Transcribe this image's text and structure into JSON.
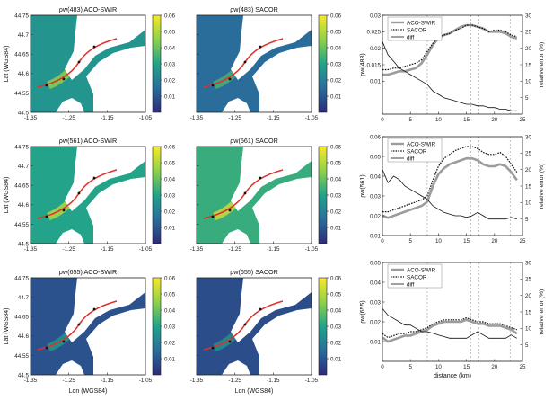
{
  "colors": {
    "land": "#ffffff",
    "water_low": "#2c2a7a",
    "water_mid": "#1f8f8c",
    "water_high": "#f5e52a",
    "track": "#e0312b",
    "aco": "#9c9c9c",
    "sacor": "#111111",
    "diff": "#111111",
    "guide": "#a8a8a8"
  },
  "maps": {
    "x_ticks": [
      "-1.35",
      "-1.25",
      "-1.15",
      "-1.05"
    ],
    "y_ticks": [
      "44.75",
      "44.7",
      "44.65",
      "44.6",
      "44.55",
      "44.5"
    ],
    "y_label": "Lat (WGS84)",
    "x_label": "Lon (WGS84)",
    "colorbar_ticks": [
      "0.06",
      "0.05",
      "0.04",
      "0.03",
      "0.02",
      "0.01"
    ],
    "rows": [
      {
        "left_title": "ρw(483) ACO-SWIR",
        "right_title": "ρw(483) SACOR",
        "left_level": 0.48,
        "right_level": 0.3
      },
      {
        "left_title": "ρw(561) ACO-SWIR",
        "right_title": "ρw(561) SACOR",
        "left_level": 0.55,
        "right_level": 0.6
      },
      {
        "left_title": "ρw(655) ACO-SWIR",
        "right_title": "ρw(655) SACOR",
        "left_level": 0.18,
        "right_level": 0.16
      }
    ]
  },
  "chart_data": [
    {
      "type": "line",
      "ylabel": "ρw(483)",
      "y2label": "relative error (%)",
      "xlabel": "",
      "x_ticks": [
        "0",
        "5",
        "10",
        "15",
        "20",
        "25"
      ],
      "xlim": [
        0,
        25
      ],
      "ylim": [
        0.0,
        0.03
      ],
      "y_ticks": [
        "0.03",
        "0.025",
        "0.02",
        "0.015",
        "0.01"
      ],
      "y2lim": [
        0,
        30
      ],
      "y2_ticks": [
        "30",
        "25",
        "20",
        "15",
        "10",
        "5"
      ],
      "vlines": [
        8,
        15.8,
        17.2,
        22.8
      ],
      "legend": [
        "ACO-SWIR",
        "SACOR",
        "diff"
      ],
      "x": [
        0,
        1,
        2,
        3,
        4,
        5,
        6,
        7,
        8,
        9,
        10,
        11,
        12,
        13,
        14,
        15,
        16,
        17,
        18,
        19,
        20,
        21,
        22,
        23,
        24
      ],
      "series": [
        {
          "name": "ACO-SWIR",
          "axis": "left",
          "values": [
            0.012,
            0.012,
            0.0125,
            0.013,
            0.013,
            0.0135,
            0.014,
            0.0155,
            0.018,
            0.021,
            0.023,
            0.024,
            0.0245,
            0.0255,
            0.0265,
            0.027,
            0.027,
            0.0265,
            0.026,
            0.025,
            0.025,
            0.025,
            0.0245,
            0.0235,
            0.023
          ]
        },
        {
          "name": "SACOR",
          "axis": "left",
          "values": [
            0.0135,
            0.0135,
            0.014,
            0.014,
            0.0145,
            0.015,
            0.0155,
            0.0165,
            0.019,
            0.0215,
            0.0235,
            0.024,
            0.0245,
            0.0255,
            0.026,
            0.027,
            0.027,
            0.0265,
            0.026,
            0.025,
            0.0255,
            0.0255,
            0.025,
            0.024,
            0.0235
          ]
        },
        {
          "name": "diff",
          "axis": "right",
          "values": [
            22,
            18,
            16,
            14,
            13,
            12,
            11,
            10,
            9,
            7,
            6,
            5,
            4.5,
            4,
            3.5,
            3,
            3,
            2.5,
            2.5,
            2,
            2,
            1.5,
            1.5,
            1,
            1
          ]
        }
      ]
    },
    {
      "type": "line",
      "ylabel": "ρw(561)",
      "y2label": "relative error (%)",
      "xlabel": "",
      "x_ticks": [
        "0",
        "5",
        "10",
        "15",
        "20",
        "25"
      ],
      "xlim": [
        0,
        25
      ],
      "ylim": [
        0.01,
        0.06
      ],
      "y_ticks": [
        "0.06",
        "0.05",
        "0.04",
        "0.03",
        "0.02",
        "0.01"
      ],
      "y2lim": [
        0,
        30
      ],
      "y2_ticks": [
        "30",
        "25",
        "20",
        "15",
        "10",
        "5"
      ],
      "vlines": [
        8,
        15.8,
        17.2,
        22.8
      ],
      "legend": [
        "ACO-SWIR",
        "SACOR",
        "diff"
      ],
      "x": [
        0,
        1,
        2,
        3,
        4,
        5,
        6,
        7,
        8,
        9,
        10,
        11,
        12,
        13,
        14,
        15,
        16,
        17,
        18,
        19,
        20,
        21,
        22,
        23,
        24
      ],
      "series": [
        {
          "name": "ACO-SWIR",
          "axis": "left",
          "values": [
            0.02,
            0.019,
            0.02,
            0.021,
            0.022,
            0.023,
            0.024,
            0.025,
            0.027,
            0.035,
            0.041,
            0.044,
            0.046,
            0.047,
            0.048,
            0.049,
            0.049,
            0.048,
            0.046,
            0.045,
            0.045,
            0.046,
            0.045,
            0.042,
            0.038
          ]
        },
        {
          "name": "SACOR",
          "axis": "left",
          "values": [
            0.022,
            0.022,
            0.023,
            0.024,
            0.025,
            0.026,
            0.027,
            0.028,
            0.03,
            0.038,
            0.045,
            0.049,
            0.051,
            0.053,
            0.054,
            0.055,
            0.055,
            0.054,
            0.052,
            0.051,
            0.051,
            0.052,
            0.05,
            0.046,
            0.042
          ]
        },
        {
          "name": "diff",
          "axis": "right",
          "values": [
            20,
            16,
            18,
            17,
            15,
            14,
            13,
            12,
            11,
            9,
            8,
            7,
            6.5,
            6,
            6,
            5.5,
            6,
            7,
            6,
            5,
            5,
            5,
            5,
            5.5,
            5
          ]
        }
      ]
    },
    {
      "type": "line",
      "ylabel": "ρw(655)",
      "y2label": "relative error (%)",
      "xlabel": "distance (km)",
      "x_ticks": [
        "0",
        "5",
        "10",
        "15",
        "20",
        "25"
      ],
      "xlim": [
        0,
        25
      ],
      "ylim": [
        0.0,
        0.05
      ],
      "y_ticks": [
        "0.05",
        "0.04",
        "0.03",
        "0.02",
        "0.01"
      ],
      "y2lim": [
        0,
        30
      ],
      "y2_ticks": [
        "30",
        "25",
        "20",
        "15",
        "10",
        "5"
      ],
      "vlines": [
        8,
        15.8,
        17.2,
        22.8
      ],
      "legend": [
        "ACO-SWIR",
        "SACOR",
        "diff"
      ],
      "x": [
        0,
        1,
        2,
        3,
        4,
        5,
        6,
        7,
        8,
        9,
        10,
        11,
        12,
        13,
        14,
        15,
        16,
        17,
        18,
        19,
        20,
        21,
        22,
        23,
        24
      ],
      "series": [
        {
          "name": "ACO-SWIR",
          "axis": "left",
          "values": [
            0.012,
            0.01,
            0.011,
            0.012,
            0.013,
            0.013,
            0.014,
            0.015,
            0.016,
            0.018,
            0.019,
            0.02,
            0.02,
            0.02,
            0.02,
            0.021,
            0.02,
            0.019,
            0.019,
            0.018,
            0.018,
            0.018,
            0.017,
            0.016,
            0.014
          ]
        },
        {
          "name": "SACOR",
          "axis": "left",
          "values": [
            0.014,
            0.012,
            0.013,
            0.014,
            0.014,
            0.015,
            0.015,
            0.016,
            0.017,
            0.019,
            0.02,
            0.021,
            0.021,
            0.021,
            0.021,
            0.022,
            0.021,
            0.02,
            0.02,
            0.019,
            0.019,
            0.019,
            0.018,
            0.017,
            0.016
          ]
        },
        {
          "name": "diff",
          "axis": "right",
          "values": [
            16,
            14,
            13,
            12,
            11,
            11,
            10,
            9,
            9,
            8.5,
            8,
            7.5,
            7,
            7,
            7,
            7,
            8,
            9,
            8,
            7,
            7,
            7,
            7,
            8,
            7
          ]
        }
      ]
    }
  ]
}
